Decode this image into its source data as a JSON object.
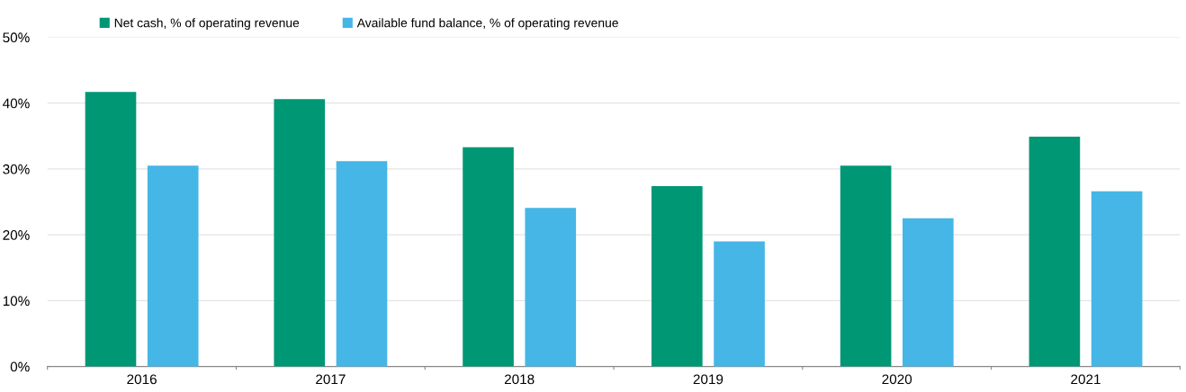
{
  "chart_data": {
    "type": "bar",
    "categories": [
      "2016",
      "2017",
      "2018",
      "2019",
      "2020",
      "2021"
    ],
    "series": [
      {
        "name": "Net cash, % of operating revenue",
        "color": "#009775",
        "values": [
          41.7,
          40.6,
          33.3,
          27.4,
          30.5,
          34.9
        ]
      },
      {
        "name": "Available fund balance, % of operating revenue",
        "color": "#45b6e6",
        "values": [
          30.5,
          31.2,
          24.1,
          19.0,
          22.5,
          26.6
        ]
      }
    ],
    "ylim": [
      0,
      50
    ],
    "yticks": [
      {
        "value": 0,
        "label": "0%"
      },
      {
        "value": 10,
        "label": "10%"
      },
      {
        "value": 20,
        "label": "20%"
      },
      {
        "value": 30,
        "label": "30%"
      },
      {
        "value": 40,
        "label": "40%"
      },
      {
        "value": 50,
        "label": "50%"
      }
    ],
    "grid": "y",
    "legend": "top left"
  }
}
